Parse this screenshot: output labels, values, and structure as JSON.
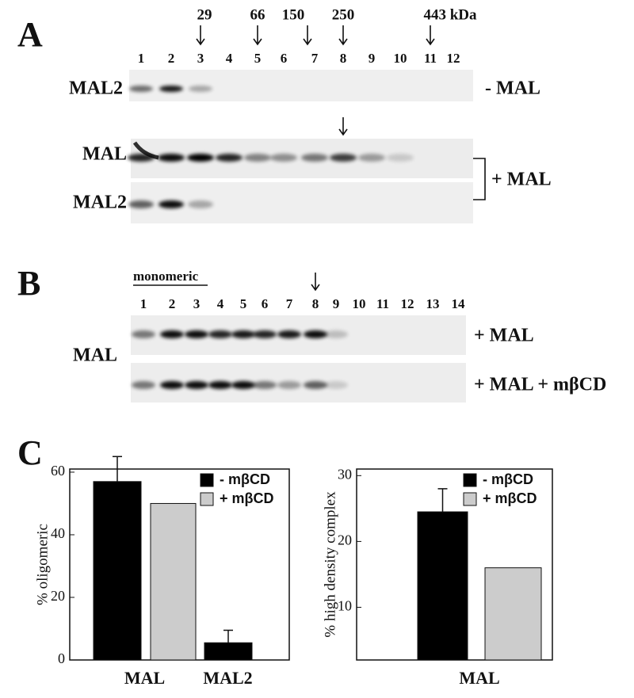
{
  "panel_a": {
    "label": "A",
    "markers": [
      "29",
      "66",
      "150",
      "250",
      "443 kDa"
    ],
    "lanes": [
      "1",
      "2",
      "3",
      "4",
      "5",
      "6",
      "7",
      "8",
      "9",
      "10",
      "11",
      "12"
    ],
    "blot_minus": {
      "row": "MAL2",
      "condition": "- MAL"
    },
    "blot_plus": {
      "rows": [
        "MAL",
        "MAL2"
      ],
      "condition": "+ MAL"
    }
  },
  "panel_b": {
    "label": "B",
    "monomeric": "monomeric",
    "lanes": [
      "1",
      "2",
      "3",
      "4",
      "5",
      "6",
      "7",
      "8",
      "9",
      "10",
      "11",
      "12",
      "13",
      "14"
    ],
    "row": "MAL",
    "conditions": [
      "+ MAL",
      "+ MAL + mβCD"
    ]
  },
  "panel_c": {
    "label": "C"
  },
  "chart_data": [
    {
      "type": "bar",
      "y_label": "% oligomeric",
      "categories": [
        "MAL",
        "MAL2"
      ],
      "series": [
        {
          "name": "- mβCD",
          "color": "#000000",
          "values": [
            57,
            5.5
          ],
          "errors": [
            8,
            4
          ]
        },
        {
          "name": "+ mβCD",
          "color": "#cccccc",
          "values": [
            50,
            null
          ]
        }
      ],
      "ylim": [
        0,
        61
      ],
      "yticks": [
        0,
        20,
        40,
        60
      ],
      "legend": "top-right"
    },
    {
      "type": "bar",
      "y_label": "% high density complex",
      "categories": [
        "MAL"
      ],
      "series": [
        {
          "name": "- mβCD",
          "color": "#000000",
          "values": [
            24.5
          ],
          "errors": [
            3.5
          ]
        },
        {
          "name": "+ mβCD",
          "color": "#cccccc",
          "values": [
            16
          ]
        }
      ],
      "ylim": [
        2,
        31
      ],
      "yticks": [
        10,
        20,
        30
      ],
      "legend": "top-right"
    }
  ]
}
